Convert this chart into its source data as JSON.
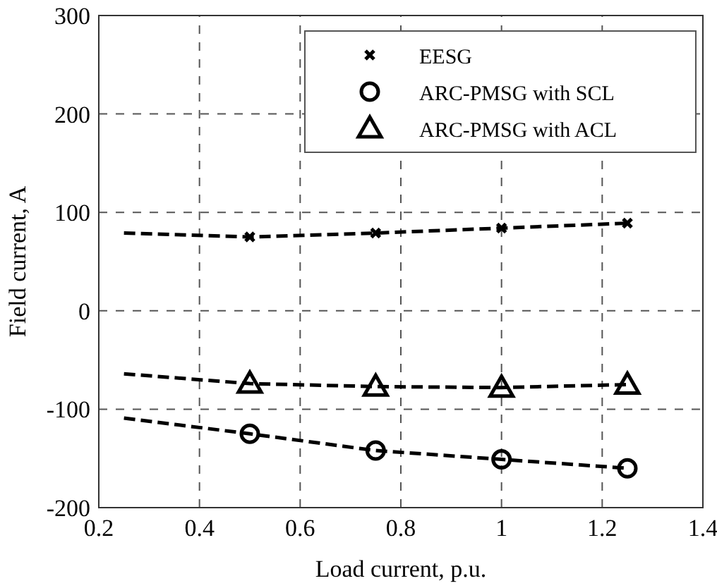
{
  "chart_data": {
    "type": "scatter",
    "xlabel": "Load current, p.u.",
    "ylabel": "Field current, A",
    "xlim": [
      0.2,
      1.4
    ],
    "xticks": [
      0.2,
      0.4,
      0.6,
      0.8,
      1,
      1.2,
      1.4
    ],
    "ylim": [
      -200,
      300
    ],
    "yticks": [
      -200,
      -100,
      0,
      100,
      200,
      300
    ],
    "grid": true,
    "legend": "top right",
    "series": [
      {
        "name": "EESG",
        "marker": "cross",
        "color": "#000000",
        "x": [
          0.5,
          0.75,
          1,
          1.25
        ],
        "values": [
          75,
          79,
          84,
          89
        ]
      },
      {
        "name": "ARC-PMSG with SCL",
        "marker": "circle",
        "color": "#000000",
        "x": [
          0.5,
          0.75,
          1,
          1.25
        ],
        "values": [
          -125,
          -142,
          -151,
          -160
        ]
      },
      {
        "name": "ARC-PMSG with ACL",
        "marker": "triangle",
        "color": "#000000",
        "x": [
          0.5,
          0.75,
          1,
          1.25
        ],
        "values": [
          -74,
          -77,
          -78,
          -75
        ]
      },
      {
        "type": "line",
        "line_style": "dashed",
        "color": "#000000",
        "x": [
          0.25,
          0.5,
          0.75,
          1,
          1.25
        ],
        "values": [
          79,
          75,
          79,
          84,
          89
        ]
      },
      {
        "type": "line",
        "line_style": "dashed",
        "color": "#000000",
        "x": [
          0.25,
          0.5,
          0.75,
          1,
          1.25
        ],
        "values": [
          -109,
          -125,
          -142,
          -151,
          -160
        ]
      },
      {
        "type": "line",
        "line_style": "dashed",
        "color": "#000000",
        "x": [
          0.25,
          0.5,
          0.75,
          1,
          1.25
        ],
        "values": [
          -64,
          -74,
          -77,
          -78,
          -75
        ]
      }
    ]
  }
}
